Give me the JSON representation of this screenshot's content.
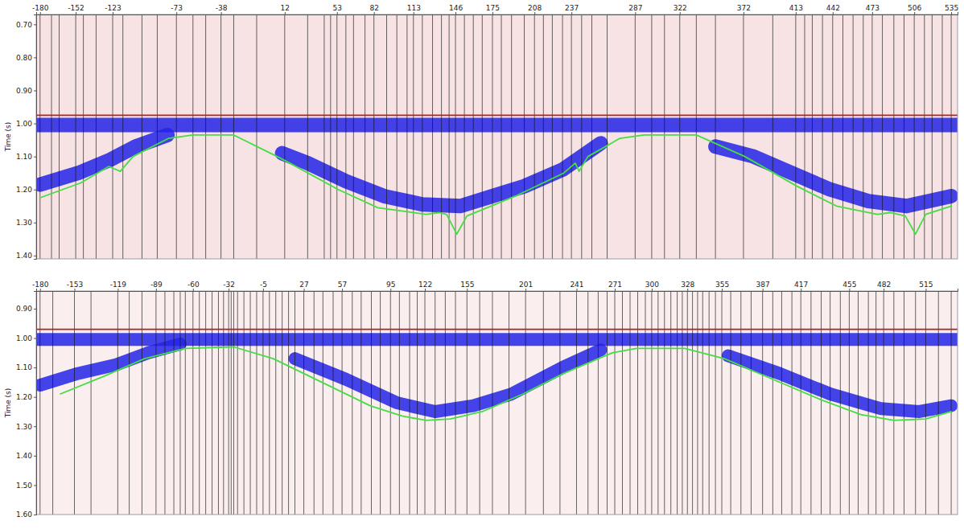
{
  "chart_data": [
    {
      "type": "line",
      "y_label": "Time (s)",
      "xlim": [
        -183,
        540
      ],
      "xticks": [
        -180,
        -152,
        -123,
        -73,
        -38,
        12,
        53,
        82,
        113,
        146,
        175,
        208,
        237,
        287,
        322,
        372,
        413,
        442,
        473,
        506,
        535
      ],
      "ylim": [
        0.67,
        1.41
      ],
      "yticks": [
        {
          "value": 0.7,
          "label": "0.70"
        },
        {
          "value": 0.8,
          "label": "0.80"
        },
        {
          "value": 0.9,
          "label": "0.90"
        },
        {
          "value": 1.0,
          "label": "1.00"
        },
        {
          "value": 1.1,
          "label": "1.10"
        },
        {
          "value": 1.2,
          "label": "1.20"
        },
        {
          "value": 1.3,
          "label": "1.30"
        },
        {
          "value": 1.4,
          "label": "1.40"
        }
      ],
      "traces": [
        -180,
        -171,
        -165,
        -152,
        -146,
        -136,
        -123,
        -115,
        -100,
        -88,
        -73,
        -60,
        -50,
        -38,
        -28,
        -10,
        12,
        30,
        43,
        48,
        53,
        60,
        66,
        75,
        82,
        92,
        100,
        108,
        113,
        120,
        128,
        135,
        141,
        146,
        153,
        160,
        167,
        175,
        182,
        190,
        200,
        208,
        215,
        222,
        230,
        237,
        245,
        253,
        265,
        287,
        300,
        310,
        322,
        335,
        350,
        372,
        395,
        413,
        420,
        426,
        434,
        442,
        450,
        458,
        466,
        473,
        481,
        490,
        498,
        506,
        514,
        520,
        528,
        535
      ],
      "series": [
        {
          "type": "band",
          "color": "#2323e8",
          "x": [
            -180,
            -150,
            -125,
            -105,
            -80,
            -40,
            10,
            30,
            60,
            90,
            120,
            150,
            175,
            200,
            230,
            245,
            260,
            300,
            350,
            380,
            410,
            440,
            470,
            500,
            535
          ],
          "values": [
            1.185,
            1.15,
            1.11,
            1.07,
            1.035,
            null,
            1.09,
            1.12,
            1.175,
            1.22,
            1.245,
            1.25,
            1.22,
            1.19,
            1.14,
            1.1,
            1.06,
            null,
            1.07,
            1.1,
            1.15,
            1.2,
            1.235,
            1.25,
            1.22
          ]
        },
        {
          "type": "band",
          "color": "#2323e8",
          "x": [
            -183,
            540
          ],
          "values": [
            1.005,
            1.005
          ]
        },
        {
          "type": "line",
          "color": "#b22222",
          "x": [
            -183,
            540
          ],
          "values": [
            0.975,
            0.975
          ]
        },
        {
          "type": "line",
          "color": "#44dd44",
          "x": [
            -180,
            -148,
            -126,
            -117,
            -107,
            -79,
            -60,
            -28,
            6,
            16,
            54,
            85,
            123,
            133,
            139,
            147,
            155,
            193,
            231,
            240,
            243,
            250,
            275,
            294,
            335,
            373,
            414,
            445,
            477,
            487,
            499,
            507,
            515,
            535
          ],
          "values": [
            1.225,
            1.18,
            1.13,
            1.145,
            1.1,
            1.045,
            1.035,
            1.035,
            1.1,
            1.12,
            1.2,
            1.255,
            1.275,
            1.27,
            1.275,
            1.335,
            1.28,
            1.22,
            1.15,
            1.12,
            1.145,
            1.1,
            1.045,
            1.035,
            1.035,
            1.1,
            1.19,
            1.25,
            1.275,
            1.27,
            1.28,
            1.335,
            1.275,
            1.25
          ]
        }
      ]
    },
    {
      "type": "line",
      "y_label": "Time (s)",
      "xlim": [
        -183,
        540
      ],
      "xticks": [
        -180,
        -153,
        -119,
        -89,
        -60,
        -32,
        -5,
        27,
        57,
        95,
        122,
        155,
        201,
        241,
        271,
        300,
        328,
        355,
        387,
        417,
        455,
        482,
        515
      ],
      "ylim": [
        0.84,
        1.6
      ],
      "yticks": [
        {
          "value": 0.9,
          "label": "0.90"
        },
        {
          "value": 1.0,
          "label": "1.00"
        },
        {
          "value": 1.1,
          "label": "1.10"
        },
        {
          "value": 1.2,
          "label": "1.20"
        },
        {
          "value": 1.3,
          "label": "1.30"
        },
        {
          "value": 1.4,
          "label": "1.40"
        },
        {
          "value": 1.5,
          "label": "1.50"
        },
        {
          "value": 1.6,
          "label": "1.60"
        }
      ],
      "traces": [
        -180,
        -170,
        -153,
        -140,
        -119,
        -110,
        -100,
        -89,
        -82,
        -75,
        -70,
        -66,
        -60,
        -55,
        -50,
        -45,
        -40,
        -36,
        -32,
        -30,
        -28,
        -25,
        -20,
        -15,
        -10,
        -5,
        0,
        5,
        10,
        15,
        20,
        27,
        35,
        42,
        50,
        57,
        65,
        72,
        80,
        87,
        95,
        102,
        110,
        116,
        122,
        130,
        138,
        146,
        155,
        165,
        175,
        188,
        201,
        215,
        228,
        241,
        250,
        258,
        265,
        271,
        277,
        283,
        289,
        295,
        300,
        305,
        310,
        315,
        320,
        324,
        328,
        332,
        336,
        340,
        345,
        350,
        355,
        362,
        370,
        378,
        387,
        395,
        402,
        410,
        417,
        425,
        433,
        440,
        448,
        455,
        462,
        470,
        476,
        482,
        490,
        498,
        507,
        515,
        525,
        535
      ],
      "series": [
        {
          "type": "band",
          "color": "#2323e8",
          "x": [
            -180,
            -150,
            -120,
            -95,
            -70,
            -30,
            20,
            60,
            100,
            130,
            160,
            190,
            230,
            260,
            300,
            360,
            400,
            440,
            480,
            510,
            535
          ],
          "values": [
            1.16,
            1.12,
            1.09,
            1.05,
            1.02,
            null,
            1.07,
            1.14,
            1.22,
            1.25,
            1.23,
            1.19,
            1.1,
            1.04,
            null,
            1.06,
            1.12,
            1.19,
            1.24,
            1.25,
            1.23
          ]
        },
        {
          "type": "band",
          "color": "#2323e8",
          "x": [
            -183,
            540
          ],
          "values": [
            1.005,
            1.005
          ]
        },
        {
          "type": "line",
          "color": "#b22222",
          "x": [
            -183,
            540
          ],
          "values": [
            0.97,
            0.97
          ]
        },
        {
          "type": "line",
          "color": "#44dd44",
          "x": [
            -164,
            -130,
            -98,
            -66,
            -28,
            3,
            41,
            79,
            104,
            123,
            142,
            167,
            199,
            231,
            269,
            288,
            326,
            357,
            395,
            433,
            464,
            490,
            515,
            535
          ],
          "values": [
            1.19,
            1.13,
            1.07,
            1.035,
            1.03,
            1.07,
            1.15,
            1.23,
            1.265,
            1.28,
            1.275,
            1.25,
            1.19,
            1.12,
            1.05,
            1.035,
            1.035,
            1.07,
            1.14,
            1.21,
            1.26,
            1.28,
            1.275,
            1.25
          ]
        }
      ]
    }
  ]
}
